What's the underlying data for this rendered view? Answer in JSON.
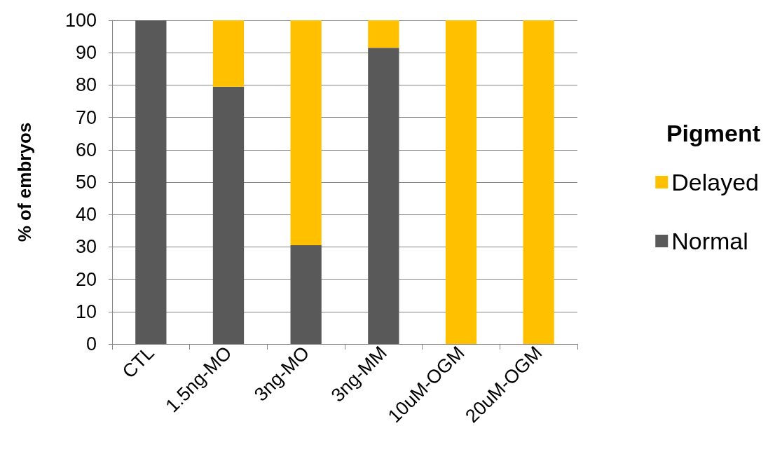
{
  "chart_data": {
    "type": "bar",
    "stacked": true,
    "ylabel": "% of embryos",
    "legend_title": "Pigment",
    "legend": "right",
    "categories": [
      "CTL",
      "1.5ng-MO",
      "3ng-MO",
      "3ng-MM",
      "10uM-OGM",
      "20uM-OGM"
    ],
    "series": [
      {
        "name": "Normal",
        "color": "#595959",
        "values": [
          100,
          79.5,
          30.5,
          91.5,
          0,
          0
        ]
      },
      {
        "name": "Delayed",
        "color": "#ffc000",
        "values": [
          0,
          20.5,
          69.5,
          8.5,
          100,
          100
        ]
      }
    ],
    "ylim": [
      0,
      100
    ],
    "yticks": [
      0,
      10,
      20,
      30,
      40,
      50,
      60,
      70,
      80,
      90,
      100
    ],
    "grid": "y"
  }
}
